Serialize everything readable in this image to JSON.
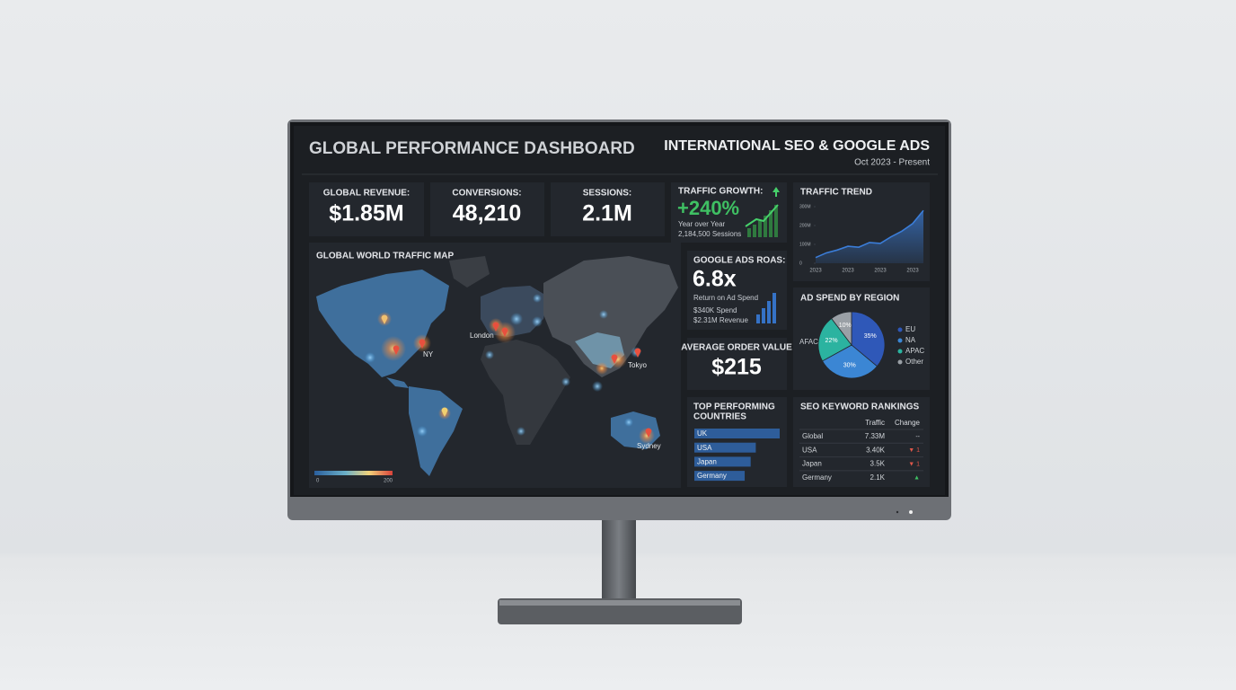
{
  "header": {
    "title": "GLOBAL PERFORMANCE DASHBOARD",
    "subtitle": "INTERNATIONAL SEO & GOOGLE ADS",
    "period": "Oct 2023 - Present"
  },
  "kpis": [
    {
      "label": "GLOBAL REVENUE:",
      "value": "$1.85M"
    },
    {
      "label": "CONVERSIONS:",
      "value": "48,210"
    },
    {
      "label": "SESSIONS:",
      "value": "2.1M"
    }
  ],
  "traffic_growth": {
    "label": "TRAFFIC GROWTH:",
    "value": "+240%",
    "caption": "Year over Year",
    "sessions": "2,184,500 Sessions"
  },
  "roas": {
    "label": "GOOGLE ADS ROAS:",
    "value": "6.8x",
    "caption": "Return on Ad Spend",
    "spend": "$340K Spend",
    "revenue": "$2.31M Revenue"
  },
  "aov": {
    "label": "AVERAGE ORDER VALUE",
    "value": "$215"
  },
  "map": {
    "title": "GLOBAL WORLD TRAFFIC MAP",
    "cities": [
      "London",
      "NY",
      "Tokyo",
      "Sydney"
    ],
    "scale": {
      "min": 0,
      "max": 200
    }
  },
  "chart_data": [
    {
      "type": "line",
      "title": "TRAFFIC TREND",
      "categories": [
        "2023",
        null,
        null,
        "2023",
        null,
        null,
        "2023",
        null,
        null,
        "2023",
        null
      ],
      "values": [
        30,
        55,
        70,
        90,
        85,
        110,
        105,
        140,
        170,
        210,
        280
      ],
      "color": "#3b7dd8",
      "ylim": [
        0,
        300
      ],
      "yticks": [
        0,
        {
          "value": 100,
          "label": "100M"
        },
        {
          "value": 200,
          "label": "200M"
        },
        {
          "value": 300,
          "label": "300M"
        }
      ]
    },
    {
      "type": "pie",
      "title": "AD SPEND BY REGION",
      "annotation": "AFAC",
      "categories": [
        "EU",
        "NA",
        "APAC",
        "Other"
      ],
      "values": [
        35,
        30,
        22,
        10
      ],
      "value_labels": [
        "35%",
        "30%",
        "22%",
        "10%"
      ],
      "colors": [
        "#2f58b8",
        "#3b86d4",
        "#2bb3a0",
        "#9aa0a6"
      ]
    },
    {
      "type": "bar",
      "title": [
        "TOP PERFORMING",
        "COUNTRIES"
      ],
      "categories": [
        "UK",
        "USA",
        "Japan",
        "Germany"
      ],
      "values": [
        100,
        72,
        66,
        59
      ],
      "color": "#2e5d9a",
      "xlim": [
        0,
        100
      ]
    }
  ],
  "seo": {
    "title": "SEO KEYWORD RANKINGS",
    "columns": [
      "Traffic",
      "Change"
    ],
    "rows": [
      [
        "Global",
        "7.33M",
        "--"
      ],
      [
        "USA",
        "3.40K",
        "▼ 1"
      ],
      [
        "Japan",
        "3.5K",
        "▼ 1"
      ],
      [
        "Germany",
        "2.1K",
        "▲"
      ]
    ]
  }
}
